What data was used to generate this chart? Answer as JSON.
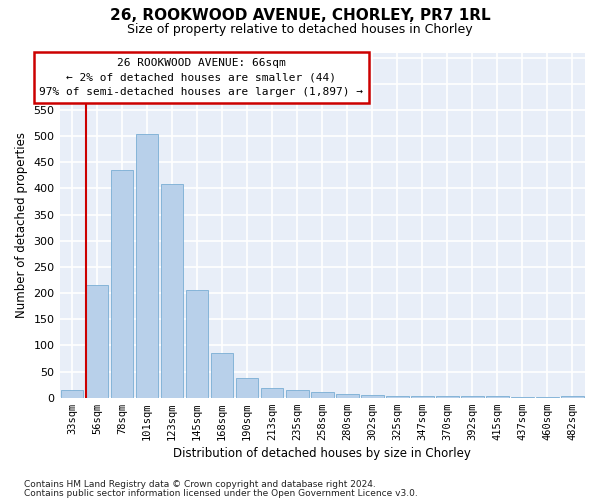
{
  "title_line1": "26, ROOKWOOD AVENUE, CHORLEY, PR7 1RL",
  "title_line2": "Size of property relative to detached houses in Chorley",
  "xlabel": "Distribution of detached houses by size in Chorley",
  "ylabel": "Number of detached properties",
  "footnote_line1": "Contains HM Land Registry data © Crown copyright and database right 2024.",
  "footnote_line2": "Contains public sector information licensed under the Open Government Licence v3.0.",
  "annotation_line1": "26 ROOKWOOD AVENUE: 66sqm",
  "annotation_line2": "← 2% of detached houses are smaller (44)",
  "annotation_line3": "97% of semi-detached houses are larger (1,897) →",
  "categories": [
    "33sqm",
    "56sqm",
    "78sqm",
    "101sqm",
    "123sqm",
    "145sqm",
    "168sqm",
    "190sqm",
    "213sqm",
    "235sqm",
    "258sqm",
    "280sqm",
    "302sqm",
    "325sqm",
    "347sqm",
    "370sqm",
    "392sqm",
    "415sqm",
    "437sqm",
    "460sqm",
    "482sqm"
  ],
  "values": [
    15,
    215,
    435,
    505,
    408,
    205,
    85,
    38,
    18,
    15,
    10,
    8,
    5,
    3,
    3,
    3,
    3,
    3,
    1,
    1,
    4
  ],
  "bar_color": "#b8d0ea",
  "bar_edge_color": "#7aadd4",
  "ylim_max": 660,
  "ytick_step": 50,
  "bg_color": "#e8eef8",
  "grid_color": "#ffffff",
  "annot_bg": "#ffffff",
  "annot_edge": "#cc0000",
  "fig_bg": "#ffffff",
  "red_line_color": "#cc0000"
}
